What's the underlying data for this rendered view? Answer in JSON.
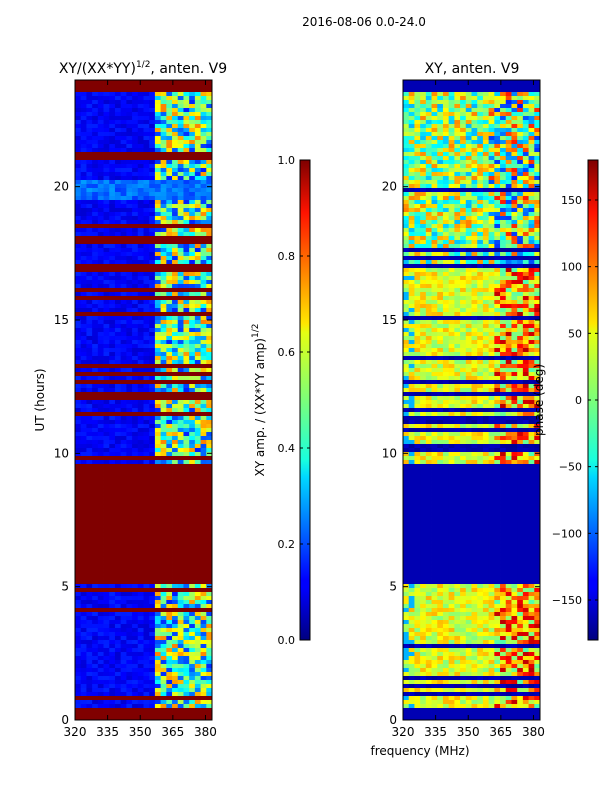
{
  "suptitle": "2016-08-06 0.0-24.0",
  "chart_data": [
    {
      "type": "heatmap",
      "title_prefix": "XY/(XX*YY)",
      "title_exp": "1/2",
      "title_suffix": ", anten. V9",
      "xlabel": "",
      "ylabel": "UT (hours)",
      "xlim": [
        320,
        383
      ],
      "ylim": [
        0,
        24
      ],
      "xticks": [
        320,
        335,
        350,
        365,
        380
      ],
      "yticks": [
        0,
        5,
        10,
        15,
        20
      ],
      "colorbar": {
        "label_prefix": "XY amp. / (XX*YY amp)",
        "label_exp": "1/2",
        "range": [
          0.0,
          1.0
        ],
        "ticks": [
          "0.0",
          "0.2",
          "0.4",
          "0.6",
          "0.8",
          "1.0"
        ],
        "colormap": "jet"
      },
      "fill_value_bands_hours": [
        [
          0,
          0.45
        ],
        [
          5.1,
          9.6
        ],
        [
          17.8,
          18.1
        ],
        [
          23.6,
          24
        ]
      ],
      "dense_channel_range_mhz": [
        358,
        380
      ]
    },
    {
      "type": "heatmap",
      "title": "XY, anten. V9",
      "xlabel": "frequency (MHz)",
      "ylabel": "",
      "xlim": [
        320,
        383
      ],
      "ylim": [
        0,
        24
      ],
      "xticks": [
        320,
        335,
        350,
        365,
        380
      ],
      "yticks": [
        0,
        5,
        10,
        15,
        20
      ],
      "colorbar": {
        "label": "phase (deg)",
        "range": [
          -180,
          180
        ],
        "ticks": [
          "−150",
          "−100",
          "−50",
          "0",
          "50",
          "100",
          "150"
        ],
        "colormap": "jet"
      },
      "fill_value_bands_hours": [
        [
          0,
          0.45
        ],
        [
          5.1,
          9.6
        ],
        [
          23.6,
          24
        ]
      ],
      "dense_channel_range_mhz": [
        358,
        380
      ]
    }
  ]
}
